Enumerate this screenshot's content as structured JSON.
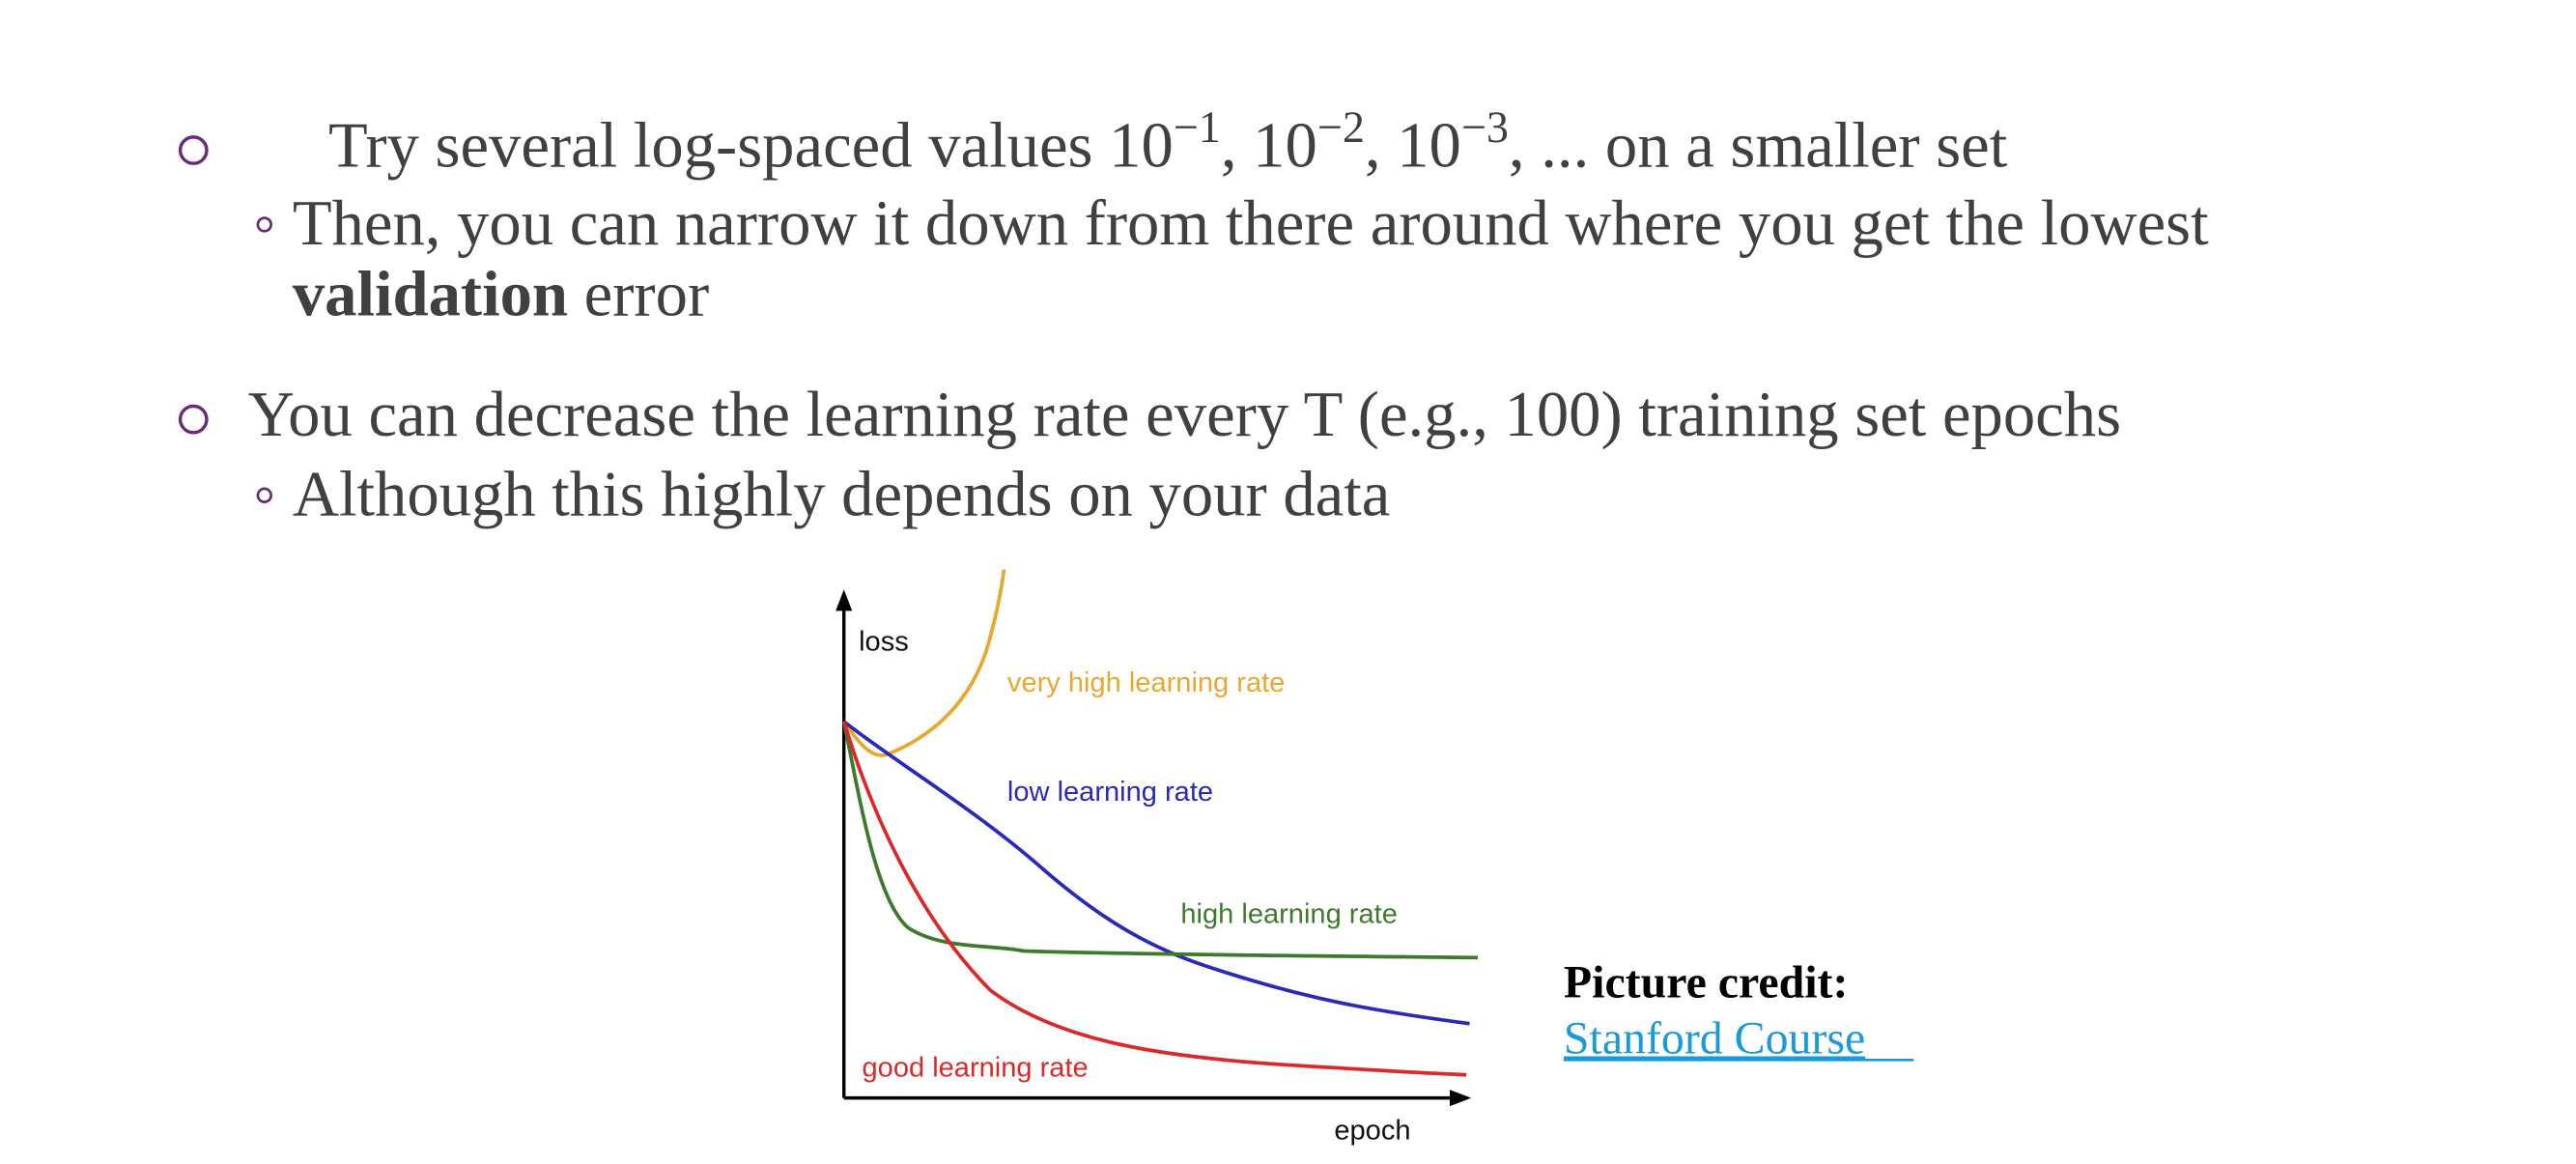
{
  "bullets": [
    {
      "parts": [
        {
          "text": "Try several log-spaced values "
        },
        {
          "base": "10",
          "exponent": "−1"
        },
        {
          "text": ", "
        },
        {
          "base": "10",
          "exponent": "−2"
        },
        {
          "text": ", "
        },
        {
          "base": "10",
          "exponent": "−3"
        },
        {
          "text": ", ... on a smaller set"
        }
      ],
      "sub": {
        "text": "Then, you can narrow it down from there around where you get the lowest",
        "emphasis": "validation",
        "text_end": " error"
      }
    },
    {
      "text": "You can decrease the learning rate every T (e.g., 100) training set epochs",
      "sub": {
        "text": "Although this highly depends on your data"
      }
    }
  ],
  "figure": {
    "y_label": "loss",
    "x_label": "epoch",
    "curves": [
      {
        "label": "very high learning rate"
      },
      {
        "label": "low learning rate"
      },
      {
        "label": "high learning rate"
      },
      {
        "label": "good learning rate"
      }
    ]
  },
  "credit": {
    "label": "Picture credit:",
    "link": "Stanford Course"
  }
}
